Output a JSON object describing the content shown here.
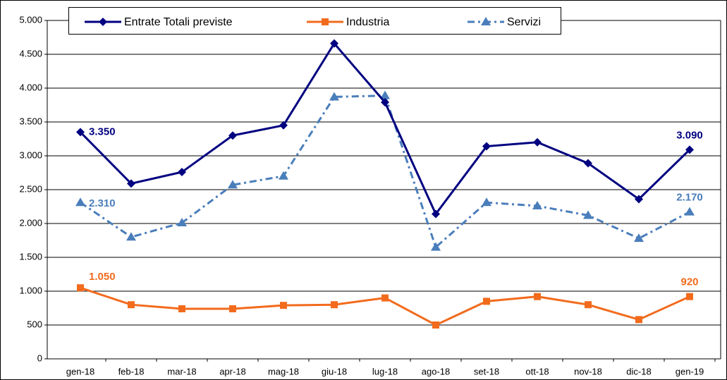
{
  "chart_data": {
    "type": "line",
    "categories": [
      "gen-18",
      "feb-18",
      "mar-18",
      "apr-18",
      "mag-18",
      "giu-18",
      "lug-18",
      "ago-18",
      "set-18",
      "ott-18",
      "nov-18",
      "dic-18",
      "gen-19"
    ],
    "series": [
      {
        "name": "Entrate Totali previste",
        "color": "#000080",
        "dash": false,
        "marker": "diamond",
        "values": [
          3350,
          2590,
          2760,
          3300,
          3450,
          4660,
          3790,
          2140,
          3140,
          3200,
          2890,
          2360,
          3090
        ],
        "value_labels": [
          "3.350",
          null,
          null,
          null,
          null,
          null,
          null,
          null,
          null,
          null,
          null,
          null,
          "3.090"
        ]
      },
      {
        "name": "Industria",
        "color": "#f26b1d",
        "dash": false,
        "marker": "square",
        "values": [
          1050,
          800,
          740,
          740,
          790,
          800,
          900,
          500,
          850,
          920,
          800,
          580,
          920
        ],
        "value_labels": [
          "1.050",
          null,
          null,
          null,
          null,
          null,
          null,
          null,
          null,
          null,
          null,
          null,
          "920"
        ]
      },
      {
        "name": "Servizi",
        "color": "#4a7ebb",
        "dash": true,
        "marker": "triangle",
        "values": [
          2310,
          1800,
          2010,
          2570,
          2700,
          3870,
          3890,
          1650,
          2310,
          2260,
          2120,
          1780,
          2170
        ],
        "value_labels": [
          "2.310",
          null,
          null,
          null,
          null,
          null,
          null,
          null,
          null,
          null,
          null,
          null,
          "2.170"
        ]
      }
    ],
    "ylim": [
      0,
      5000
    ],
    "yticks": [
      0,
      500,
      {
        "value": 1000,
        "label": "1.000"
      },
      {
        "value": 1500,
        "label": "1.500"
      },
      {
        "value": 2000,
        "label": "2.000"
      },
      {
        "value": 2500,
        "label": "2.500"
      },
      {
        "value": 3000,
        "label": "3.000"
      },
      {
        "value": 3500,
        "label": "3.500"
      },
      {
        "value": 4000,
        "label": "4.000"
      },
      {
        "value": 4500,
        "label": "4.500"
      },
      {
        "value": 5000,
        "label": "5.000"
      }
    ],
    "grid": true,
    "legend": "top"
  }
}
